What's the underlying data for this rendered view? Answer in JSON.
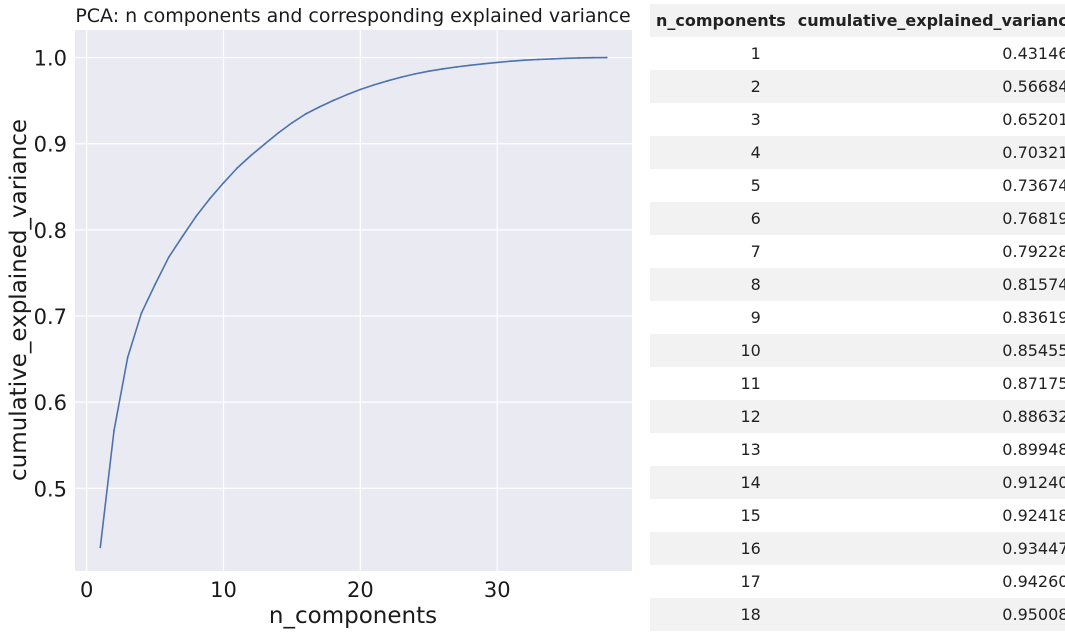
{
  "chart_data": {
    "type": "line",
    "title": "PCA: n components and corresponding explained variance",
    "xlabel": "n_components",
    "ylabel": "cumulative_explained_variance",
    "xlim": [
      -0.85,
      39.85
    ],
    "ylim": [
      0.404,
      1.032
    ],
    "xticks": [
      0,
      10,
      20,
      30
    ],
    "yticks": [
      0.5,
      0.6,
      0.7,
      0.8,
      0.9,
      1.0
    ],
    "ytick_labels": [
      "0.5",
      "0.6",
      "0.7",
      "0.8",
      "0.9",
      "1.0"
    ],
    "grid": true,
    "colors": {
      "line": "#4c72b0",
      "background": "#eaeaf2",
      "grid": "#ffffff"
    },
    "x": [
      1,
      2,
      3,
      4,
      5,
      6,
      7,
      8,
      9,
      10,
      11,
      12,
      13,
      14,
      15,
      16,
      17,
      18,
      19,
      20,
      21,
      22,
      23,
      24,
      25,
      26,
      27,
      28,
      29,
      30,
      31,
      32,
      33,
      34,
      35,
      36,
      37,
      38
    ],
    "y": [
      0.43146,
      0.566843,
      0.652013,
      0.703216,
      0.736744,
      0.768192,
      0.79228,
      0.815749,
      0.836194,
      0.854557,
      0.871753,
      0.886323,
      0.89948,
      0.912402,
      0.92418,
      0.934472,
      0.942607,
      0.950087,
      0.9568,
      0.9629,
      0.9683,
      0.973,
      0.9773,
      0.981,
      0.9842,
      0.9868,
      0.989,
      0.991,
      0.9928,
      0.9944,
      0.9958,
      0.9969,
      0.9978,
      0.9985,
      0.9991,
      0.9996,
      0.9999,
      1.0
    ]
  },
  "table": {
    "headers": [
      "n_components",
      "cumulative_explained_variance"
    ],
    "rows": [
      [
        "1",
        "0.431460"
      ],
      [
        "2",
        "0.566843"
      ],
      [
        "3",
        "0.652013"
      ],
      [
        "4",
        "0.703216"
      ],
      [
        "5",
        "0.736744"
      ],
      [
        "6",
        "0.768192"
      ],
      [
        "7",
        "0.792280"
      ],
      [
        "8",
        "0.815749"
      ],
      [
        "9",
        "0.836194"
      ],
      [
        "10",
        "0.854557"
      ],
      [
        "11",
        "0.871753"
      ],
      [
        "12",
        "0.886323"
      ],
      [
        "13",
        "0.899480"
      ],
      [
        "14",
        "0.912402"
      ],
      [
        "15",
        "0.924180"
      ],
      [
        "16",
        "0.934472"
      ],
      [
        "17",
        "0.942607"
      ],
      [
        "18",
        "0.950087"
      ]
    ]
  }
}
